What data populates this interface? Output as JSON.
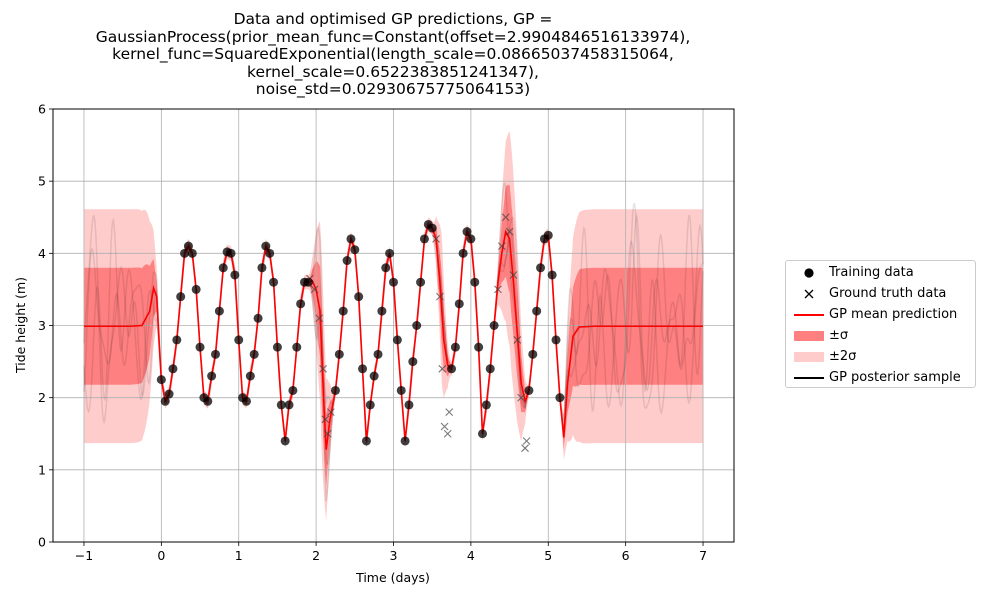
{
  "chart_data": {
    "type": "line",
    "title_lines": [
      "Data and optimised GP predictions, GP =",
      "GaussianProcess(prior_mean_func=Constant(offset=2.9904846516133974),",
      "kernel_func=SquaredExponential(length_scale=0.08665037458315064,",
      "kernel_scale=0.6522383851241347),",
      "noise_std=0.02930675775064153)"
    ],
    "xlabel": "Time (days)",
    "ylabel": "Tide height (m)",
    "xlim": [
      -1.4,
      7.4
    ],
    "ylim": [
      0,
      6
    ],
    "xticks": [
      -1,
      0,
      1,
      2,
      3,
      4,
      5,
      6,
      7
    ],
    "xtick_labels": [
      "−1",
      "0",
      "1",
      "2",
      "3",
      "4",
      "5",
      "6",
      "7"
    ],
    "yticks": [
      0,
      1,
      2,
      3,
      4,
      5,
      6
    ],
    "ytick_labels": [
      "0",
      "1",
      "2",
      "3",
      "4",
      "5",
      "6"
    ],
    "grid": true,
    "legend_placement": "right",
    "prior_mean": 2.99,
    "prior_1sigma": 0.81,
    "prior_2sigma": 1.61,
    "colors": {
      "mean": "#ff0000",
      "band1": "#ff8080",
      "band2": "#ffcccc",
      "training": "#000000",
      "ground_truth": "#404040",
      "grid": "#b0b0b0",
      "sample": "#000000"
    },
    "series": [
      {
        "name": "Training data",
        "kind": "scatter-dot",
        "segments": [
          [
            [
              0.0,
              2.25
            ],
            [
              0.05,
              1.95
            ],
            [
              0.1,
              2.05
            ],
            [
              0.15,
              2.4
            ],
            [
              0.2,
              2.8
            ],
            [
              0.25,
              3.4
            ],
            [
              0.3,
              4.0
            ],
            [
              0.35,
              4.1
            ],
            [
              0.4,
              4.0
            ],
            [
              0.45,
              3.5
            ],
            [
              0.5,
              2.7
            ],
            [
              0.55,
              2.0
            ],
            [
              0.6,
              1.95
            ],
            [
              0.65,
              2.3
            ],
            [
              0.7,
              2.6
            ],
            [
              0.75,
              3.2
            ],
            [
              0.8,
              3.8
            ],
            [
              0.85,
              4.02
            ],
            [
              0.9,
              4.0
            ],
            [
              0.95,
              3.7
            ],
            [
              1.0,
              2.8
            ],
            [
              1.05,
              2.0
            ],
            [
              1.1,
              1.95
            ],
            [
              1.15,
              2.3
            ],
            [
              1.2,
              2.6
            ],
            [
              1.25,
              3.1
            ],
            [
              1.3,
              3.8
            ],
            [
              1.35,
              4.1
            ],
            [
              1.4,
              4.0
            ],
            [
              1.45,
              3.6
            ],
            [
              1.5,
              2.7
            ],
            [
              1.55,
              1.9
            ],
            [
              1.6,
              1.4
            ],
            [
              1.65,
              1.9
            ],
            [
              1.7,
              2.1
            ],
            [
              1.75,
              2.7
            ],
            [
              1.8,
              3.3
            ],
            [
              1.85,
              3.6
            ],
            [
              1.9,
              3.6
            ]
          ],
          [
            [
              2.25,
              2.1
            ],
            [
              2.3,
              2.6
            ],
            [
              2.35,
              3.2
            ],
            [
              2.4,
              3.9
            ],
            [
              2.45,
              4.2
            ],
            [
              2.5,
              4.05
            ],
            [
              2.55,
              3.4
            ],
            [
              2.6,
              2.4
            ],
            [
              2.65,
              1.4
            ],
            [
              2.7,
              1.9
            ],
            [
              2.75,
              2.3
            ],
            [
              2.8,
              2.6
            ],
            [
              2.85,
              3.2
            ],
            [
              2.9,
              3.8
            ],
            [
              2.95,
              4.0
            ],
            [
              3.0,
              3.6
            ],
            [
              3.05,
              2.8
            ],
            [
              3.1,
              2.1
            ],
            [
              3.15,
              1.4
            ],
            [
              3.2,
              1.9
            ],
            [
              3.25,
              2.5
            ],
            [
              3.3,
              3.0
            ],
            [
              3.35,
              3.6
            ],
            [
              3.4,
              4.2
            ],
            [
              3.45,
              4.4
            ],
            [
              3.5,
              4.35
            ]
          ],
          [
            [
              3.75,
              2.4
            ],
            [
              3.8,
              2.7
            ],
            [
              3.85,
              3.3
            ],
            [
              3.9,
              4.0
            ],
            [
              3.95,
              4.3
            ],
            [
              4.0,
              4.2
            ],
            [
              4.05,
              3.6
            ],
            [
              4.1,
              2.7
            ],
            [
              4.15,
              1.5
            ],
            [
              4.2,
              1.9
            ],
            [
              4.25,
              2.4
            ],
            [
              4.3,
              3.0
            ]
          ],
          [
            [
              4.75,
              2.1
            ],
            [
              4.8,
              2.6
            ],
            [
              4.85,
              3.2
            ],
            [
              4.9,
              3.8
            ],
            [
              4.95,
              4.2
            ],
            [
              5.0,
              4.25
            ],
            [
              5.05,
              3.7
            ],
            [
              5.1,
              2.8
            ],
            [
              5.15,
              2.0
            ]
          ]
        ]
      },
      {
        "name": "Ground truth data",
        "kind": "scatter-x",
        "segments": [
          [
            [
              1.92,
              3.65
            ],
            [
              1.98,
              3.5
            ],
            [
              2.04,
              3.1
            ],
            [
              2.09,
              2.4
            ],
            [
              2.12,
              1.7
            ],
            [
              2.15,
              1.5
            ],
            [
              2.19,
              1.8
            ]
          ],
          [
            [
              3.55,
              4.2
            ],
            [
              3.6,
              3.4
            ],
            [
              3.63,
              2.4
            ],
            [
              3.66,
              1.6
            ],
            [
              3.7,
              1.5
            ],
            [
              3.72,
              1.8
            ]
          ],
          [
            [
              4.35,
              3.5
            ],
            [
              4.4,
              4.1
            ],
            [
              4.45,
              4.5
            ],
            [
              4.5,
              4.3
            ],
            [
              4.55,
              3.7
            ],
            [
              4.6,
              2.8
            ],
            [
              4.65,
              2.0
            ],
            [
              4.7,
              1.3
            ],
            [
              4.72,
              1.4
            ]
          ]
        ]
      },
      {
        "name": "GP mean prediction",
        "kind": "line",
        "points": [
          [
            -1.0,
            2.99
          ],
          [
            -0.4,
            2.99
          ],
          [
            -0.25,
            3.0
          ],
          [
            -0.15,
            3.2
          ],
          [
            -0.1,
            3.52
          ],
          [
            -0.06,
            3.4
          ],
          [
            -0.02,
            2.6
          ],
          [
            0.0,
            2.25
          ],
          [
            0.05,
            1.95
          ],
          [
            0.1,
            2.05
          ],
          [
            0.15,
            2.4
          ],
          [
            0.2,
            2.8
          ],
          [
            0.25,
            3.4
          ],
          [
            0.3,
            4.0
          ],
          [
            0.35,
            4.1
          ],
          [
            0.4,
            4.0
          ],
          [
            0.45,
            3.5
          ],
          [
            0.5,
            2.7
          ],
          [
            0.55,
            2.0
          ],
          [
            0.6,
            1.95
          ],
          [
            0.65,
            2.3
          ],
          [
            0.7,
            2.6
          ],
          [
            0.75,
            3.2
          ],
          [
            0.8,
            3.8
          ],
          [
            0.85,
            4.02
          ],
          [
            0.9,
            4.0
          ],
          [
            0.95,
            3.7
          ],
          [
            1.0,
            2.8
          ],
          [
            1.05,
            2.0
          ],
          [
            1.1,
            1.95
          ],
          [
            1.15,
            2.3
          ],
          [
            1.2,
            2.6
          ],
          [
            1.25,
            3.1
          ],
          [
            1.3,
            3.8
          ],
          [
            1.35,
            4.1
          ],
          [
            1.4,
            4.0
          ],
          [
            1.45,
            3.6
          ],
          [
            1.5,
            2.7
          ],
          [
            1.55,
            1.9
          ],
          [
            1.6,
            1.4
          ],
          [
            1.65,
            1.9
          ],
          [
            1.7,
            2.1
          ],
          [
            1.75,
            2.7
          ],
          [
            1.8,
            3.3
          ],
          [
            1.85,
            3.6
          ],
          [
            1.9,
            3.6
          ],
          [
            1.95,
            3.62
          ],
          [
            2.0,
            3.5
          ],
          [
            2.05,
            3.2
          ],
          [
            2.1,
            1.9
          ],
          [
            2.13,
            1.28
          ],
          [
            2.18,
            1.7
          ],
          [
            2.25,
            2.1
          ],
          [
            2.3,
            2.6
          ],
          [
            2.35,
            3.2
          ],
          [
            2.4,
            3.9
          ],
          [
            2.45,
            4.2
          ],
          [
            2.5,
            4.05
          ],
          [
            2.55,
            3.4
          ],
          [
            2.6,
            2.4
          ],
          [
            2.65,
            1.4
          ],
          [
            2.7,
            1.9
          ],
          [
            2.75,
            2.3
          ],
          [
            2.8,
            2.6
          ],
          [
            2.85,
            3.2
          ],
          [
            2.9,
            3.8
          ],
          [
            2.95,
            4.0
          ],
          [
            3.0,
            3.6
          ],
          [
            3.05,
            2.8
          ],
          [
            3.1,
            2.1
          ],
          [
            3.15,
            1.4
          ],
          [
            3.2,
            1.9
          ],
          [
            3.25,
            2.5
          ],
          [
            3.3,
            3.0
          ],
          [
            3.35,
            3.6
          ],
          [
            3.4,
            4.2
          ],
          [
            3.45,
            4.4
          ],
          [
            3.5,
            4.35
          ],
          [
            3.55,
            4.2
          ],
          [
            3.6,
            3.6
          ],
          [
            3.65,
            2.8
          ],
          [
            3.7,
            2.45
          ],
          [
            3.75,
            2.4
          ],
          [
            3.8,
            2.7
          ],
          [
            3.85,
            3.3
          ],
          [
            3.9,
            4.0
          ],
          [
            3.95,
            4.3
          ],
          [
            4.0,
            4.2
          ],
          [
            4.05,
            3.6
          ],
          [
            4.1,
            2.7
          ],
          [
            4.15,
            1.5
          ],
          [
            4.2,
            1.9
          ],
          [
            4.25,
            2.4
          ],
          [
            4.3,
            3.0
          ],
          [
            4.35,
            3.6
          ],
          [
            4.4,
            4.0
          ],
          [
            4.45,
            4.3
          ],
          [
            4.5,
            4.2
          ],
          [
            4.55,
            3.6
          ],
          [
            4.6,
            2.9
          ],
          [
            4.65,
            2.2
          ],
          [
            4.7,
            1.95
          ],
          [
            4.75,
            2.1
          ],
          [
            4.8,
            2.6
          ],
          [
            4.85,
            3.2
          ],
          [
            4.9,
            3.8
          ],
          [
            4.95,
            4.2
          ],
          [
            5.0,
            4.25
          ],
          [
            5.05,
            3.7
          ],
          [
            5.1,
            2.8
          ],
          [
            5.15,
            2.0
          ],
          [
            5.2,
            1.45
          ],
          [
            5.25,
            2.2
          ],
          [
            5.32,
            2.85
          ],
          [
            5.4,
            2.98
          ],
          [
            5.6,
            2.99
          ],
          [
            7.0,
            2.99
          ]
        ]
      },
      {
        "name": "±σ",
        "kind": "band1"
      },
      {
        "name": "±2σ",
        "kind": "band2"
      },
      {
        "name": "GP posterior sample",
        "kind": "sample-lines"
      }
    ]
  }
}
